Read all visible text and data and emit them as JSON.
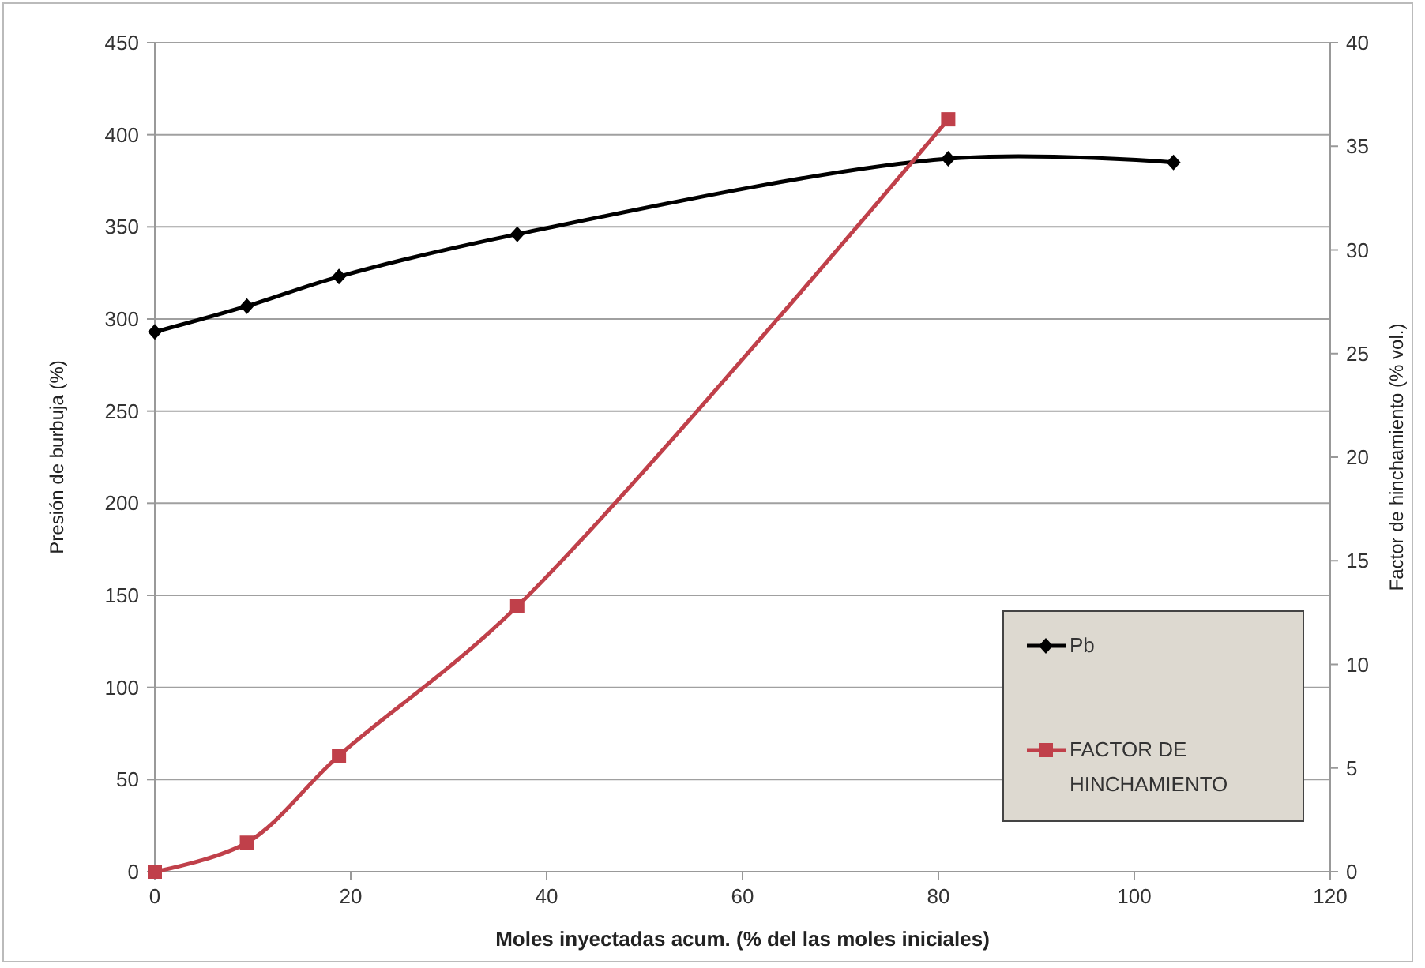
{
  "chart_data": {
    "type": "line",
    "xlabel": "Moles  inyectadas  acum. (% del las moles iniciales)",
    "ylabel": "Presión de burbuja (%)",
    "y2label": "Factor de hinchamiento (% vol.)",
    "xlim": [
      0,
      120
    ],
    "xticks": [
      0,
      20,
      40,
      60,
      80,
      100,
      120
    ],
    "ylim": [
      0,
      450
    ],
    "yticks": [
      0,
      50,
      100,
      150,
      200,
      250,
      300,
      350,
      400,
      450
    ],
    "y2lim": [
      0,
      40
    ],
    "y2ticks": [
      0,
      5,
      10,
      15,
      20,
      25,
      30,
      35,
      40
    ],
    "grid": "y",
    "legend": "bottom right",
    "series": [
      {
        "name": "Pb",
        "color": "#000000",
        "marker": "diamond",
        "x": [
          0,
          9.4,
          18.8,
          37,
          81,
          104
        ],
        "values": [
          293,
          307,
          323,
          346,
          387,
          385
        ]
      },
      {
        "name": "FACTOR DE HINCHAMIENTO",
        "color": "#c0404a",
        "marker": "square",
        "axis": "y2",
        "x": [
          0,
          9.4,
          18.8,
          37,
          81
        ],
        "values": [
          0,
          1.4,
          5.6,
          12.8,
          36.3
        ]
      }
    ]
  }
}
